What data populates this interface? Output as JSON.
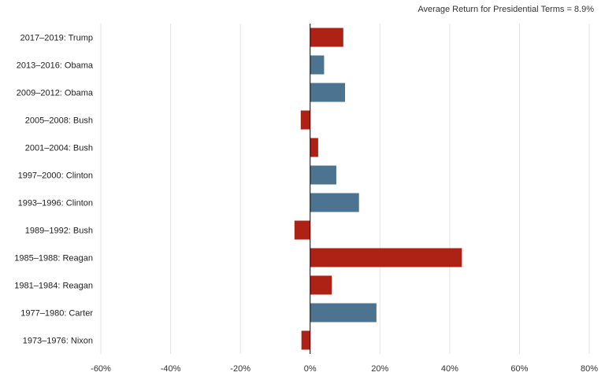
{
  "note": "Average Return  for Presidential Terms = 8.9%",
  "colors": {
    "republican": "#ae2216",
    "democrat": "#4c7491",
    "grid": "#e3e3e3",
    "axis": "#000000"
  },
  "chart_data": {
    "type": "bar",
    "orientation": "horizontal",
    "categories": [
      "2017–2019: Trump",
      "2013–2016: Obama",
      "2009–2012: Obama",
      "2005–2008: Bush",
      "2001–2004: Bush",
      "1997–2000: Clinton",
      "1993–1996: Clinton",
      "1989–1992: Bush",
      "1985–1988: Reagan",
      "1981–1984: Reagan",
      "1977–1980: Carter",
      "1973–1976: Nixon"
    ],
    "values": [
      9.5,
      4.0,
      10.0,
      -2.7,
      2.3,
      7.5,
      14.0,
      -4.5,
      43.5,
      6.2,
      19.0,
      -2.5
    ],
    "party": [
      "republican",
      "democrat",
      "democrat",
      "republican",
      "republican",
      "democrat",
      "democrat",
      "republican",
      "republican",
      "republican",
      "democrat",
      "republican"
    ],
    "xlim": [
      -60,
      80
    ],
    "xticks": [
      -60,
      -40,
      -20,
      0,
      20,
      40,
      60,
      80
    ],
    "xtick_labels": [
      "-60%",
      "-40%",
      "-20%",
      "0%",
      "20%",
      "40%",
      "60%",
      "80%"
    ],
    "title": "",
    "xlabel": "",
    "ylabel": "",
    "grid": true
  }
}
